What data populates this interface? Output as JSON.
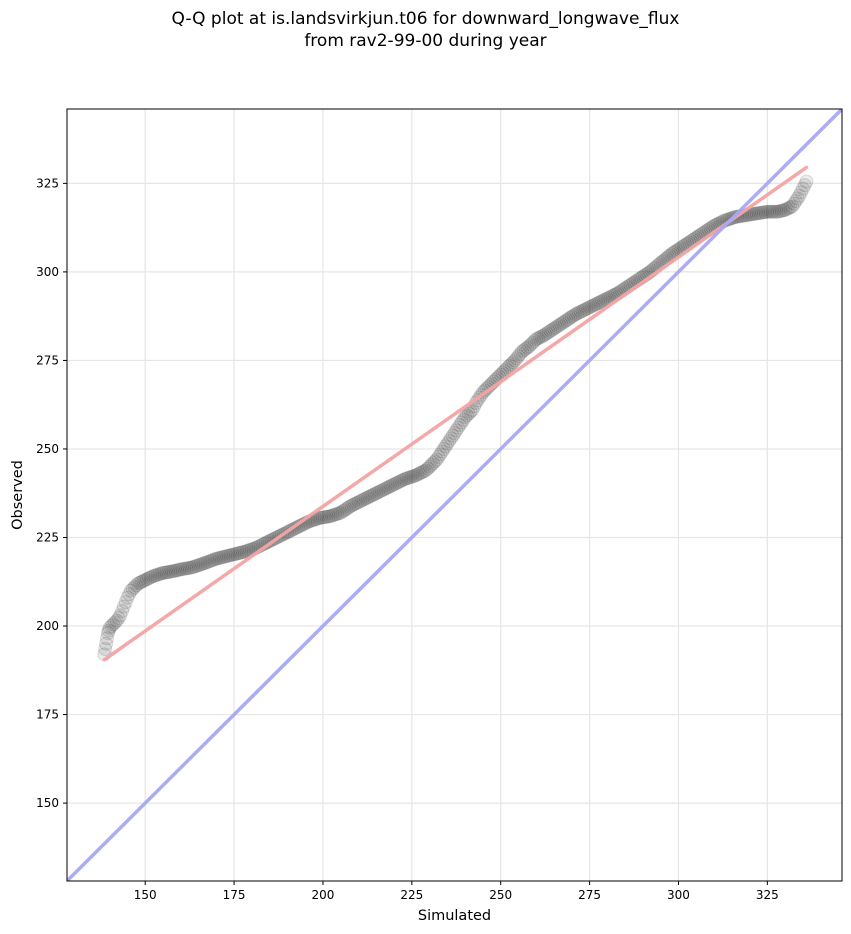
{
  "chart_data": {
    "type": "scatter",
    "title_line1": "Q-Q plot at is.landsvirkjun.t06 for downward_longwave_flux",
    "title_line2": "from rav2-99-00 during year",
    "xlabel": "Simulated",
    "ylabel": "Observed",
    "xlim": [
      128,
      346
    ],
    "ylim": [
      128,
      346
    ],
    "xticks": [
      150,
      175,
      200,
      225,
      250,
      275,
      300,
      325
    ],
    "yticks": [
      150,
      175,
      200,
      225,
      250,
      275,
      300,
      325
    ],
    "grid": true,
    "colors": {
      "points": "#000000",
      "fit_line": "#f4a3a3",
      "identity_line": "#a8a8f5"
    },
    "fit_line": {
      "x": [
        138.5,
        336
      ],
      "y": [
        190.5,
        329.5
      ]
    },
    "identity_line": {
      "x": [
        128,
        346
      ],
      "y": [
        128,
        346
      ]
    },
    "quantiles": {
      "x": [
        138.5,
        139,
        139.5,
        140,
        141,
        142,
        143,
        144,
        145,
        146,
        148,
        150,
        152,
        155,
        158,
        160,
        163,
        166,
        170,
        174,
        178,
        181,
        184,
        187,
        190,
        193,
        196,
        199,
        202,
        205,
        208,
        211,
        214,
        217,
        220,
        223,
        226,
        229,
        232,
        234,
        236,
        238,
        240,
        242,
        243,
        244,
        245,
        246,
        247,
        248,
        249,
        250,
        252,
        254,
        256,
        258,
        260,
        262,
        265,
        268,
        271,
        274,
        277,
        280,
        283,
        286,
        289,
        292,
        295,
        298,
        301,
        304,
        307,
        310,
        313,
        316,
        319,
        322,
        325,
        328,
        330,
        332,
        333,
        334,
        335,
        336
      ],
      "y": [
        192,
        195,
        198,
        199.5,
        200.5,
        201.5,
        203,
        205.5,
        208,
        210,
        212,
        213,
        214,
        215,
        215.5,
        216,
        216.5,
        217.5,
        219,
        220,
        221,
        222,
        223.5,
        225,
        226.5,
        228,
        229.5,
        230.5,
        231,
        232,
        234,
        235.5,
        237,
        238.5,
        240,
        241.5,
        242.5,
        244,
        247,
        250,
        253,
        256,
        259,
        261,
        263,
        264.5,
        266,
        267,
        268,
        269,
        270,
        271,
        273,
        275,
        277.5,
        279,
        281,
        282,
        284,
        286,
        288,
        289.5,
        291,
        292.5,
        294,
        296,
        298,
        300,
        302.5,
        305,
        307,
        309,
        311,
        313,
        314.5,
        315.5,
        316,
        316.5,
        317,
        317,
        317.5,
        318.5,
        320,
        321.5,
        323.5,
        325.5
      ]
    }
  }
}
